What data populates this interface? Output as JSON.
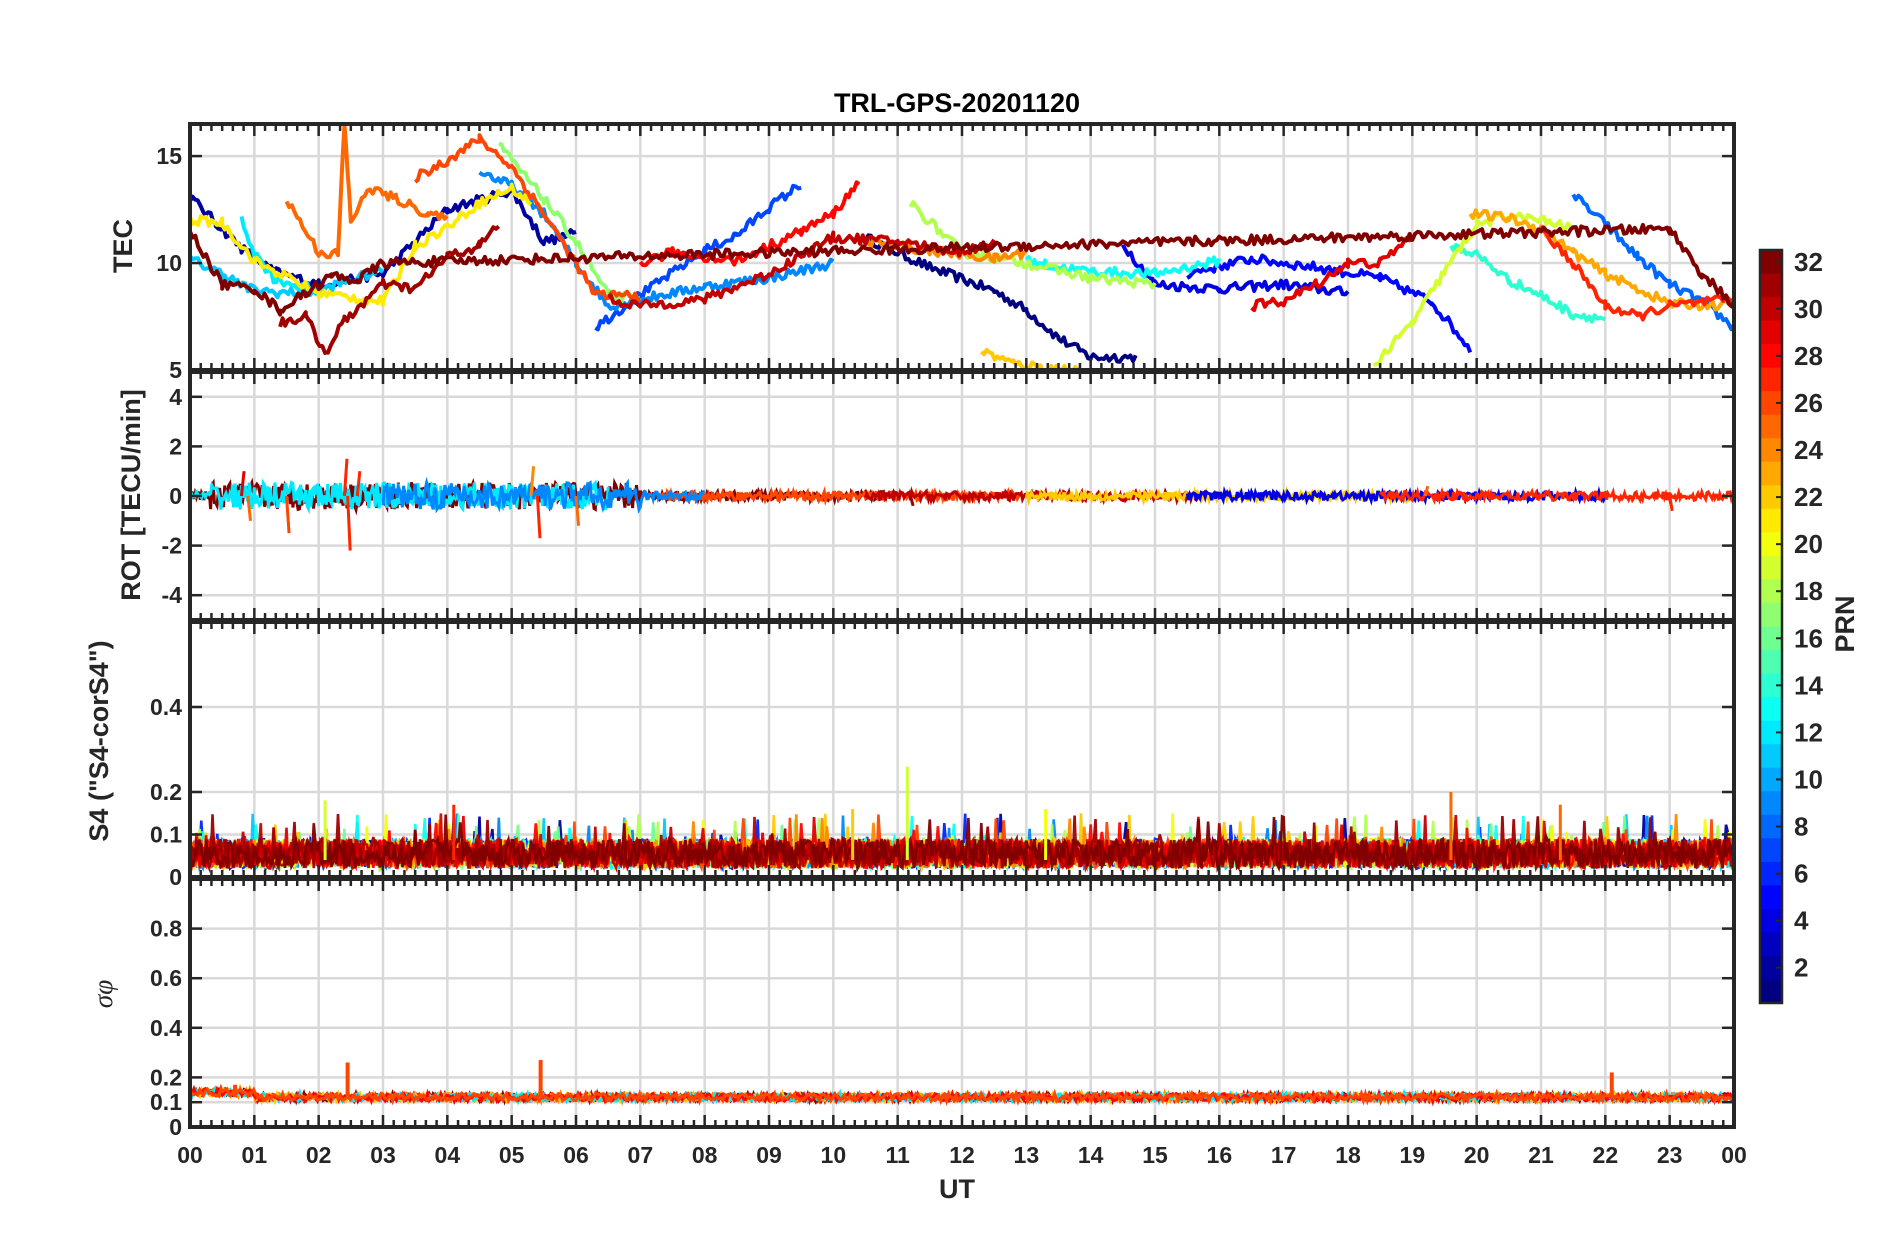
{
  "chart_data": [
    {
      "type": "line",
      "title": "TRL-GPS-20201120",
      "ylabel": "TEC",
      "xlim": [
        0,
        24
      ],
      "ylim": [
        5,
        16.5
      ],
      "yticks": [
        5,
        10,
        15
      ],
      "grid": true,
      "series_note_color_by": "PRN",
      "series": [
        {
          "prn": 1,
          "points": [
            [
              10.5,
              11.2
            ],
            [
              11.5,
              9.8
            ],
            [
              12.5,
              8.7
            ],
            [
              13.0,
              7.8
            ],
            [
              13.5,
              6.5
            ],
            [
              14.0,
              5.6
            ],
            [
              14.7,
              5.6
            ]
          ]
        },
        {
          "prn": 2,
          "points": [
            [
              0.0,
              13.1
            ],
            [
              0.4,
              11.9
            ],
            [
              0.8,
              10.7
            ],
            [
              1.3,
              9.6
            ],
            [
              2.0,
              9.0
            ],
            [
              3.0,
              9.5
            ],
            [
              4.0,
              12.5
            ],
            [
              5.0,
              13.4
            ],
            [
              5.5,
              11.0
            ],
            [
              6.0,
              11.4
            ]
          ]
        },
        {
          "prn": 4,
          "points": [
            [
              14.5,
              10.9
            ],
            [
              15.0,
              9.0
            ],
            [
              16.0,
              8.8
            ],
            [
              17.0,
              9.0
            ],
            [
              18.0,
              8.6
            ]
          ]
        },
        {
          "prn": 5,
          "points": [
            [
              15.5,
              9.5
            ],
            [
              16.5,
              10.2
            ],
            [
              17.5,
              9.8
            ],
            [
              18.5,
              9.3
            ],
            [
              19.3,
              8.2
            ],
            [
              19.9,
              6.0
            ]
          ]
        },
        {
          "prn": 7,
          "points": [
            [
              6.3,
              7.0
            ],
            [
              7.0,
              8.5
            ],
            [
              8.0,
              10.6
            ],
            [
              8.5,
              11.3
            ],
            [
              9.0,
              12.6
            ],
            [
              9.5,
              13.7
            ]
          ]
        },
        {
          "prn": 8,
          "points": [
            [
              21.5,
              13.2
            ],
            [
              22.0,
              11.8
            ],
            [
              22.5,
              10.3
            ],
            [
              23.0,
              9.0
            ],
            [
              23.5,
              8.2
            ],
            [
              24.0,
              7.0
            ]
          ]
        },
        {
          "prn": 9,
          "points": [
            [
              4.5,
              14.3
            ],
            [
              5.0,
              13.6
            ],
            [
              5.5,
              12.3
            ],
            [
              6.0,
              10.0
            ],
            [
              6.5,
              8.0
            ],
            [
              7.0,
              8.3
            ],
            [
              8.0,
              8.9
            ],
            [
              9.0,
              9.3
            ],
            [
              10.0,
              10.0
            ]
          ]
        },
        {
          "prn": 11,
          "points": [
            [
              0.0,
              10.2
            ],
            [
              0.5,
              9.5
            ],
            [
              0.9,
              8.8
            ],
            [
              1.4,
              8.6
            ],
            [
              2.0,
              8.7
            ],
            [
              2.5,
              9.2
            ],
            [
              3.0,
              9.7
            ]
          ]
        },
        {
          "prn": 12,
          "points": [
            [
              0.8,
              12.0
            ],
            [
              1.0,
              10.5
            ],
            [
              1.3,
              9.3
            ],
            [
              1.7,
              8.9
            ],
            [
              2.1,
              8.7
            ]
          ]
        },
        {
          "prn": 13,
          "points": [
            [
              13.0,
              10.1
            ],
            [
              13.5,
              9.8
            ],
            [
              14.0,
              9.6
            ],
            [
              15.0,
              9.5
            ],
            [
              16.0,
              10.1
            ]
          ]
        },
        {
          "prn": 14,
          "points": [
            [
              19.6,
              10.8
            ],
            [
              20.0,
              10.4
            ],
            [
              20.5,
              9.2
            ],
            [
              21.0,
              8.5
            ],
            [
              21.5,
              7.6
            ],
            [
              22.0,
              7.4
            ]
          ]
        },
        {
          "prn": 17,
          "points": [
            [
              4.8,
              15.5
            ],
            [
              5.5,
              13.0
            ],
            [
              6.0,
              11.0
            ],
            [
              6.5,
              8.5
            ],
            [
              7.0,
              8.3
            ]
          ]
        },
        {
          "prn": 18,
          "points": [
            [
              11.2,
              12.8
            ],
            [
              12.0,
              10.5
            ],
            [
              13.0,
              10.0
            ],
            [
              14.0,
              9.3
            ],
            [
              15.0,
              9.0
            ]
          ]
        },
        {
          "prn": 19,
          "points": [
            [
              18.4,
              5.2
            ],
            [
              19.0,
              7.2
            ],
            [
              19.5,
              9.6
            ],
            [
              20.0,
              11.8
            ],
            [
              20.5,
              12.2
            ],
            [
              21.0,
              12.0
            ],
            [
              21.5,
              11.6
            ]
          ]
        },
        {
          "prn": 21,
          "points": [
            [
              0.0,
              12.0
            ],
            [
              0.5,
              11.9
            ],
            [
              1.0,
              10.1
            ],
            [
              2.0,
              8.6
            ],
            [
              3.0,
              8.2
            ],
            [
              3.5,
              10.8
            ],
            [
              4.0,
              11.7
            ],
            [
              4.5,
              12.8
            ],
            [
              5.0,
              13.5
            ],
            [
              5.3,
              12.8
            ]
          ]
        },
        {
          "prn": 22,
          "points": [
            [
              12.3,
              5.9
            ],
            [
              12.8,
              5.3
            ],
            [
              13.3,
              5.1
            ],
            [
              13.8,
              5.0
            ]
          ]
        },
        {
          "prn": 23,
          "points": [
            [
              19.9,
              12.3
            ],
            [
              20.5,
              12.1
            ],
            [
              21.0,
              11.6
            ],
            [
              21.5,
              10.5
            ],
            [
              22.0,
              9.5
            ],
            [
              23.0,
              8.1
            ],
            [
              24.0,
              8.0
            ]
          ]
        },
        {
          "prn": 24,
          "points": [
            [
              10.5,
              11.0
            ],
            [
              11.5,
              10.6
            ],
            [
              12.5,
              10.2
            ],
            [
              13.0,
              10.5
            ]
          ]
        },
        {
          "prn": 25,
          "points": [
            [
              1.5,
              13.0
            ],
            [
              2.0,
              10.5
            ],
            [
              2.3,
              10.4
            ],
            [
              2.4,
              16.5
            ],
            [
              2.5,
              12.0
            ],
            [
              2.8,
              13.5
            ],
            [
              3.2,
              13.0
            ],
            [
              3.7,
              12.3
            ],
            [
              4.0,
              12.0
            ]
          ]
        },
        {
          "prn": 26,
          "points": [
            [
              3.5,
              14.0
            ],
            [
              4.0,
              14.8
            ],
            [
              4.5,
              15.8
            ],
            [
              5.0,
              14.5
            ],
            [
              5.5,
              12.3
            ],
            [
              6.0,
              10.0
            ],
            [
              6.3,
              8.5
            ],
            [
              7.0,
              8.5
            ]
          ]
        },
        {
          "prn": 27,
          "points": [
            [
              21.0,
              11.5
            ],
            [
              21.5,
              10.0
            ],
            [
              22.0,
              8.0
            ],
            [
              22.5,
              7.5
            ],
            [
              23.0,
              8.0
            ],
            [
              24.0,
              8.3
            ]
          ]
        },
        {
          "prn": 28,
          "points": [
            [
              7.0,
              10.0
            ],
            [
              7.5,
              10.5
            ],
            [
              8.5,
              10.1
            ],
            [
              9.5,
              11.5
            ],
            [
              10.0,
              12.3
            ],
            [
              10.4,
              13.8
            ]
          ]
        },
        {
          "prn": 29,
          "points": [
            [
              16.5,
              8.0
            ],
            [
              17.0,
              8.2
            ],
            [
              17.5,
              9.0
            ],
            [
              18.0,
              10.0
            ],
            [
              18.5,
              10.0
            ],
            [
              19.0,
              11.3
            ]
          ]
        },
        {
          "prn": 30,
          "points": [
            [
              6.5,
              8.3
            ],
            [
              7.0,
              8.0
            ],
            [
              8.0,
              8.3
            ],
            [
              9.0,
              9.5
            ],
            [
              10.0,
              11.2
            ],
            [
              11.0,
              11.0
            ],
            [
              12.0,
              10.5
            ],
            [
              12.5,
              11.0
            ]
          ]
        },
        {
          "prn": 31,
          "points": [
            [
              1.4,
              7.2
            ],
            [
              1.8,
              7.5
            ],
            [
              2.1,
              5.8
            ],
            [
              2.4,
              7.3
            ],
            [
              3.0,
              9.0
            ],
            [
              3.5,
              8.8
            ],
            [
              4.0,
              10.3
            ],
            [
              4.5,
              10.8
            ],
            [
              4.8,
              11.8
            ]
          ]
        },
        {
          "prn": 32,
          "points": [
            [
              0.0,
              11.5
            ],
            [
              0.5,
              9.0
            ],
            [
              1.0,
              8.8
            ],
            [
              1.4,
              7.8
            ],
            [
              1.8,
              8.6
            ],
            [
              2.2,
              9.4
            ],
            [
              2.6,
              9.2
            ],
            [
              3.0,
              10.0
            ],
            [
              23.0,
              11.6
            ],
            [
              23.5,
              9.5
            ],
            [
              24.0,
              8.0
            ]
          ]
        }
      ]
    },
    {
      "type": "line",
      "ylabel": "ROT [TECU/min]",
      "xlim": [
        0,
        24
      ],
      "ylim": [
        -5,
        5
      ],
      "yticks": [
        -4,
        -2,
        0,
        2,
        4
      ],
      "grid": true,
      "baseline": 0,
      "spikes": [
        [
          0.9,
          -1.0
        ],
        [
          1.5,
          -1.5
        ],
        [
          2.4,
          1.5
        ],
        [
          2.45,
          -2.2
        ],
        [
          5.3,
          1.2
        ],
        [
          5.4,
          -1.7
        ],
        [
          6.0,
          -1.2
        ],
        [
          2.6,
          1.0
        ],
        [
          0.8,
          1.0
        ],
        [
          11.2,
          -0.4
        ],
        [
          19.2,
          0.4
        ],
        [
          23.0,
          -0.6
        ]
      ]
    },
    {
      "type": "line",
      "ylabel": "S4 (\"S4-corS4\")",
      "xlim": [
        0,
        24
      ],
      "ylim": [
        0,
        0.6
      ],
      "yticks": [
        0,
        0.1,
        0.2,
        0.4
      ],
      "grid": true,
      "typical_range": [
        0.02,
        0.12
      ],
      "peaks": [
        [
          11.15,
          0.26
        ],
        [
          19.6,
          0.2
        ],
        [
          2.1,
          0.18
        ],
        [
          21.3,
          0.17
        ],
        [
          4.1,
          0.17
        ],
        [
          10.3,
          0.16
        ],
        [
          13.3,
          0.16
        ]
      ]
    },
    {
      "type": "line",
      "ylabel": "σφ",
      "xlabel": "UT",
      "xlim": [
        0,
        24
      ],
      "ylim": [
        0,
        1
      ],
      "yticks": [
        0,
        0.1,
        0.2,
        0.4,
        0.6,
        0.8
      ],
      "xticks": [
        "00",
        "01",
        "02",
        "03",
        "04",
        "05",
        "06",
        "07",
        "08",
        "09",
        "10",
        "11",
        "12",
        "13",
        "14",
        "15",
        "16",
        "17",
        "18",
        "19",
        "20",
        "21",
        "22",
        "23",
        "00"
      ],
      "grid": true,
      "baseline": 0.12,
      "peaks": [
        [
          2.45,
          0.26
        ],
        [
          5.45,
          0.27
        ],
        [
          22.1,
          0.22
        ],
        [
          0.7,
          0.17
        ]
      ]
    },
    {
      "type": "colorbar",
      "label": "PRN",
      "colormap": "jet",
      "range": [
        1,
        32
      ],
      "ticks": [
        2,
        4,
        6,
        8,
        10,
        12,
        14,
        16,
        18,
        20,
        22,
        24,
        26,
        28,
        30,
        32
      ]
    }
  ]
}
